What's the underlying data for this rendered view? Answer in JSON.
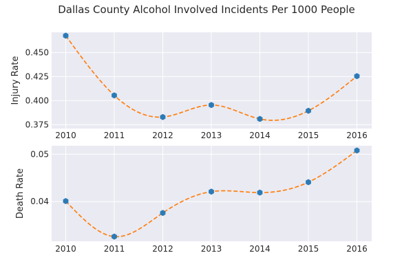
{
  "title": "Dallas County Alcohol Involved Incidents Per 1000 People",
  "chart_data": [
    {
      "type": "line",
      "ylabel": "Injury Rate",
      "x": [
        2010,
        2011,
        2012,
        2013,
        2014,
        2015,
        2016
      ],
      "x_ticks": [
        "2010",
        "2011",
        "2012",
        "2013",
        "2014",
        "2015",
        "2016"
      ],
      "values": [
        0.4675,
        0.4055,
        0.383,
        0.3955,
        0.381,
        0.3895,
        0.4255
      ],
      "ylim": [
        0.371,
        0.471
      ],
      "y_ticks": [
        0.375,
        0.4,
        0.425,
        0.45
      ],
      "y_tick_labels": [
        "0.375",
        "0.400",
        "0.425",
        "0.450"
      ],
      "marker_color": "#2c7bb6",
      "curve_color": "#ff7f0e",
      "grid": true
    },
    {
      "type": "line",
      "ylabel": "Death Rate",
      "x": [
        2010,
        2011,
        2012,
        2013,
        2014,
        2015,
        2016
      ],
      "x_ticks": [
        "2010",
        "2011",
        "2012",
        "2013",
        "2014",
        "2015",
        "2016"
      ],
      "values": [
        0.0401,
        0.0326,
        0.0376,
        0.0421,
        0.0419,
        0.0441,
        0.0508
      ],
      "ylim": [
        0.0316,
        0.0518
      ],
      "y_ticks": [
        0.04,
        0.05
      ],
      "y_tick_labels": [
        "0.04",
        "0.05"
      ],
      "marker_color": "#2c7bb6",
      "curve_color": "#ff7f0e",
      "grid": true
    }
  ]
}
